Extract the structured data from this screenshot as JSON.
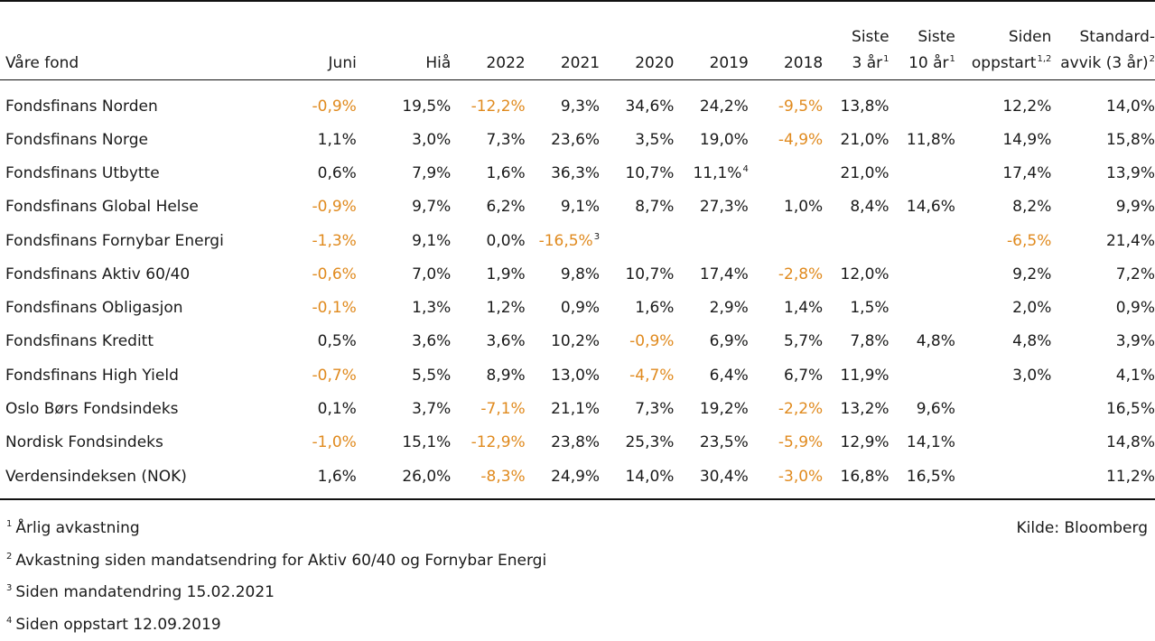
{
  "headers": [
    {
      "lines": [
        "Våre fond"
      ],
      "sup": ""
    },
    {
      "lines": [
        "Juni"
      ],
      "sup": ""
    },
    {
      "lines": [
        "Hiå"
      ],
      "sup": ""
    },
    {
      "lines": [
        "2022"
      ],
      "sup": ""
    },
    {
      "lines": [
        "2021"
      ],
      "sup": ""
    },
    {
      "lines": [
        "2020"
      ],
      "sup": ""
    },
    {
      "lines": [
        "2019"
      ],
      "sup": ""
    },
    {
      "lines": [
        "2018"
      ],
      "sup": ""
    },
    {
      "lines": [
        "Siste",
        "3 år"
      ],
      "sup": "1"
    },
    {
      "lines": [
        "Siste",
        "10 år"
      ],
      "sup": "1"
    },
    {
      "lines": [
        "Siden",
        "oppstart"
      ],
      "sup": "1,2"
    },
    {
      "lines": [
        "Standard-",
        "avvik (3 år)"
      ],
      "sup": "2"
    }
  ],
  "rows": [
    {
      "name": "Fondsfinans Norden",
      "cells": [
        {
          "v": "-0,9%",
          "neg": true
        },
        {
          "v": "19,5%"
        },
        {
          "v": "-12,2%",
          "neg": true
        },
        {
          "v": "9,3%"
        },
        {
          "v": "34,6%"
        },
        {
          "v": "24,2%"
        },
        {
          "v": "-9,5%",
          "neg": true
        },
        {
          "v": "13,8%"
        },
        {
          "v": ""
        },
        {
          "v": "12,2%"
        },
        {
          "v": "14,0%"
        }
      ]
    },
    {
      "name": "Fondsfinans Norge",
      "cells": [
        {
          "v": "1,1%"
        },
        {
          "v": "3,0%"
        },
        {
          "v": "7,3%"
        },
        {
          "v": "23,6%"
        },
        {
          "v": "3,5%"
        },
        {
          "v": "19,0%"
        },
        {
          "v": "-4,9%",
          "neg": true
        },
        {
          "v": "21,0%"
        },
        {
          "v": "11,8%"
        },
        {
          "v": "14,9%"
        },
        {
          "v": "15,8%"
        }
      ]
    },
    {
      "name": "Fondsfinans Utbytte",
      "cells": [
        {
          "v": "0,6%"
        },
        {
          "v": "7,9%"
        },
        {
          "v": "1,6%"
        },
        {
          "v": "36,3%"
        },
        {
          "v": "10,7%"
        },
        {
          "v": "11,1%",
          "sup": "4"
        },
        {
          "v": ""
        },
        {
          "v": "21,0%"
        },
        {
          "v": ""
        },
        {
          "v": "17,4%"
        },
        {
          "v": "13,9%"
        }
      ]
    },
    {
      "name": "Fondsfinans Global Helse",
      "cells": [
        {
          "v": "-0,9%",
          "neg": true
        },
        {
          "v": "9,7%"
        },
        {
          "v": "6,2%"
        },
        {
          "v": "9,1%"
        },
        {
          "v": "8,7%"
        },
        {
          "v": "27,3%"
        },
        {
          "v": "1,0%"
        },
        {
          "v": "8,4%"
        },
        {
          "v": "14,6%"
        },
        {
          "v": "8,2%"
        },
        {
          "v": "9,9%"
        }
      ]
    },
    {
      "name": "Fondsfinans Fornybar Energi",
      "cells": [
        {
          "v": "-1,3%",
          "neg": true
        },
        {
          "v": "9,1%"
        },
        {
          "v": "0,0%"
        },
        {
          "v": "-16,5%",
          "neg": true,
          "sup": "3"
        },
        {
          "v": ""
        },
        {
          "v": ""
        },
        {
          "v": ""
        },
        {
          "v": ""
        },
        {
          "v": ""
        },
        {
          "v": "-6,5%",
          "neg": true
        },
        {
          "v": "21,4%"
        }
      ]
    },
    {
      "name": "Fondsfinans Aktiv 60/40",
      "cells": [
        {
          "v": "-0,6%",
          "neg": true
        },
        {
          "v": "7,0%"
        },
        {
          "v": "1,9%"
        },
        {
          "v": "9,8%"
        },
        {
          "v": "10,7%"
        },
        {
          "v": "17,4%"
        },
        {
          "v": "-2,8%",
          "neg": true
        },
        {
          "v": "12,0%"
        },
        {
          "v": ""
        },
        {
          "v": "9,2%"
        },
        {
          "v": "7,2%"
        }
      ]
    },
    {
      "name": "Fondsfinans Obligasjon",
      "cells": [
        {
          "v": "-0,1%",
          "neg": true
        },
        {
          "v": "1,3%"
        },
        {
          "v": "1,2%"
        },
        {
          "v": "0,9%"
        },
        {
          "v": "1,6%"
        },
        {
          "v": "2,9%"
        },
        {
          "v": "1,4%"
        },
        {
          "v": "1,5%"
        },
        {
          "v": ""
        },
        {
          "v": "2,0%"
        },
        {
          "v": "0,9%"
        }
      ]
    },
    {
      "name": "Fondsfinans Kreditt",
      "cells": [
        {
          "v": "0,5%"
        },
        {
          "v": "3,6%"
        },
        {
          "v": "3,6%"
        },
        {
          "v": "10,2%"
        },
        {
          "v": "-0,9%",
          "neg": true
        },
        {
          "v": "6,9%"
        },
        {
          "v": "5,7%"
        },
        {
          "v": "7,8%"
        },
        {
          "v": "4,8%"
        },
        {
          "v": "4,8%"
        },
        {
          "v": "3,9%"
        }
      ]
    },
    {
      "name": "Fondsfinans High Yield",
      "cells": [
        {
          "v": "-0,7%",
          "neg": true
        },
        {
          "v": "5,5%"
        },
        {
          "v": "8,9%"
        },
        {
          "v": "13,0%"
        },
        {
          "v": "-4,7%",
          "neg": true
        },
        {
          "v": "6,4%"
        },
        {
          "v": "6,7%"
        },
        {
          "v": "11,9%"
        },
        {
          "v": ""
        },
        {
          "v": "3,0%"
        },
        {
          "v": "4,1%"
        }
      ]
    },
    {
      "name": "Oslo Børs Fondsindeks",
      "cells": [
        {
          "v": "0,1%"
        },
        {
          "v": "3,7%"
        },
        {
          "v": "-7,1%",
          "neg": true
        },
        {
          "v": "21,1%"
        },
        {
          "v": "7,3%"
        },
        {
          "v": "19,2%"
        },
        {
          "v": "-2,2%",
          "neg": true
        },
        {
          "v": "13,2%"
        },
        {
          "v": "9,6%"
        },
        {
          "v": ""
        },
        {
          "v": "16,5%"
        }
      ]
    },
    {
      "name": "Nordisk Fondsindeks",
      "cells": [
        {
          "v": "-1,0%",
          "neg": true
        },
        {
          "v": "15,1%"
        },
        {
          "v": "-12,9%",
          "neg": true
        },
        {
          "v": "23,8%"
        },
        {
          "v": "25,3%"
        },
        {
          "v": "23,5%"
        },
        {
          "v": "-5,9%",
          "neg": true
        },
        {
          "v": "12,9%"
        },
        {
          "v": "14,1%"
        },
        {
          "v": ""
        },
        {
          "v": "14,8%"
        }
      ]
    },
    {
      "name": "Verdensindeksen (NOK)",
      "cells": [
        {
          "v": "1,6%"
        },
        {
          "v": "26,0%"
        },
        {
          "v": "-8,3%",
          "neg": true
        },
        {
          "v": "24,9%"
        },
        {
          "v": "14,0%"
        },
        {
          "v": "30,4%"
        },
        {
          "v": "-3,0%",
          "neg": true
        },
        {
          "v": "16,8%"
        },
        {
          "v": "16,5%"
        },
        {
          "v": ""
        },
        {
          "v": "11,2%"
        }
      ]
    }
  ],
  "footnotes": [
    {
      "num": "1",
      "text": "Årlig avkastning"
    },
    {
      "num": "2",
      "text": "Avkastning siden mandatsendring for Aktiv 60/40 og Fornybar Energi"
    },
    {
      "num": "3",
      "text": "Siden mandatendring 15.02.2021"
    },
    {
      "num": "4",
      "text": "Siden oppstart 12.09.2019"
    }
  ],
  "source": "Kilde: Bloomberg",
  "colors": {
    "negative": "#e08a1e",
    "text": "#1a1a1a",
    "rule": "#111111"
  }
}
